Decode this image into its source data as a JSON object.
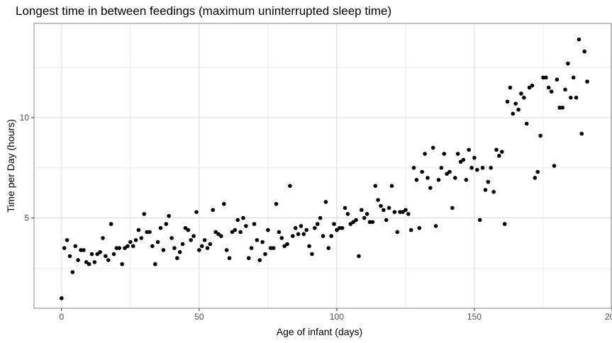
{
  "chart_data": {
    "type": "scatter",
    "title": "Longest time in between feedings (maximum uninterrupted sleep time)",
    "xlabel": "Age of infant (days)",
    "ylabel": "Time per Day (hours)",
    "xlim": [
      -10,
      200
    ],
    "ylim": [
      0.5,
      14.7
    ],
    "x_major_ticks": [
      0,
      50,
      100,
      150,
      200
    ],
    "x_minor_ticks": [
      25,
      75,
      125,
      175
    ],
    "y_major_ticks": [
      5,
      10
    ],
    "y_minor_ticks": [
      2.5,
      7.5,
      12.5
    ],
    "x_tick_labels": [
      "0",
      "50",
      "100",
      "150",
      "200"
    ],
    "y_tick_labels": [
      "5",
      "10"
    ],
    "grid": true,
    "legend": "none",
    "point_color": "#000000",
    "grid_color": "#dcdcdc",
    "x": [
      0,
      1,
      2,
      3,
      4,
      5,
      6,
      7,
      8,
      9,
      10,
      11,
      12,
      13,
      14,
      15,
      16,
      17,
      18,
      19,
      20,
      21,
      22,
      23,
      24,
      25,
      26,
      27,
      28,
      29,
      30,
      31,
      32,
      33,
      34,
      35,
      36,
      37,
      38,
      39,
      40,
      41,
      42,
      43,
      44,
      45,
      46,
      47,
      48,
      49,
      50,
      51,
      52,
      53,
      54,
      55,
      56,
      57,
      58,
      59,
      60,
      61,
      62,
      63,
      64,
      65,
      66,
      67,
      68,
      69,
      70,
      71,
      72,
      73,
      74,
      75,
      76,
      77,
      78,
      79,
      80,
      81,
      82,
      83,
      84,
      85,
      86,
      87,
      88,
      89,
      90,
      91,
      92,
      93,
      94,
      95,
      96,
      97,
      98,
      99,
      100,
      101,
      102,
      103,
      104,
      105,
      106,
      107,
      108,
      109,
      110,
      111,
      112,
      113,
      114,
      115,
      116,
      117,
      118,
      119,
      120,
      121,
      122,
      123,
      124,
      125,
      126,
      127,
      128,
      129,
      130,
      131,
      132,
      133,
      134,
      135,
      136,
      137,
      138,
      139,
      140,
      141,
      142,
      143,
      144,
      145,
      146,
      147,
      148,
      149,
      150,
      151,
      152,
      153,
      154,
      155,
      156,
      157,
      158,
      159,
      160,
      161,
      162,
      163,
      164,
      165,
      166,
      167,
      168,
      169,
      170,
      171,
      172,
      173,
      174,
      175,
      176,
      177,
      178,
      179,
      180,
      181,
      182,
      183,
      184,
      185,
      186,
      187,
      188,
      189,
      190,
      191
    ],
    "y": [
      1.0,
      3.5,
      3.9,
      3.1,
      2.3,
      3.6,
      2.9,
      3.4,
      3.4,
      2.8,
      2.7,
      3.2,
      2.8,
      3.2,
      3.3,
      4.0,
      3.1,
      2.9,
      4.7,
      3.2,
      3.5,
      3.5,
      2.7,
      3.5,
      3.6,
      3.8,
      3.6,
      3.9,
      4.4,
      4.0,
      5.2,
      4.3,
      4.3,
      3.6,
      2.7,
      3.8,
      4.5,
      3.4,
      4.7,
      5.1,
      4.0,
      3.5,
      3.0,
      3.3,
      3.7,
      4.5,
      4.4,
      3.9,
      4.1,
      5.3,
      3.4,
      3.6,
      3.9,
      3.5,
      3.7,
      5.4,
      4.3,
      4.2,
      4.1,
      5.7,
      3.4,
      3.0,
      4.3,
      4.4,
      4.9,
      4.3,
      5.0,
      4.6,
      3.0,
      3.5,
      4.7,
      3.9,
      2.9,
      3.8,
      3.2,
      4.4,
      3.5,
      3.5,
      5.7,
      4.3,
      4.0,
      3.6,
      3.7,
      6.6,
      4.1,
      4.5,
      4.2,
      4.6,
      4.2,
      4.4,
      3.6,
      3.2,
      4.5,
      4.7,
      5.0,
      4.1,
      5.8,
      3.5,
      4.1,
      4.7,
      4.4,
      4.5,
      4.5,
      5.5,
      5.2,
      4.7,
      4.8,
      4.9,
      3.1,
      5.4,
      5.0,
      5.2,
      4.8,
      4.8,
      6.6,
      5.9,
      5.6,
      5.4,
      4.9,
      5.5,
      6.6,
      5.3,
      4.3,
      5.3,
      5.3,
      5.4,
      5.2,
      4.4,
      7.5,
      6.9,
      4.5,
      7.3,
      8.2,
      7.0,
      6.5,
      8.5,
      4.6,
      6.9,
      7.5,
      8.2,
      7.2,
      7.3,
      5.5,
      7.0,
      8.2,
      7.8,
      7.9,
      6.9,
      8.4,
      7.5,
      8.0,
      7.4,
      4.9,
      7.5,
      6.4,
      6.8,
      7.5,
      6.3,
      8.4,
      8.1,
      8.3,
      4.7,
      10.8,
      11.5,
      10.2,
      10.7,
      10.4,
      11.2,
      11.0,
      9.7,
      11.5,
      11.6,
      7.0,
      7.3,
      9.1,
      12.0,
      12.0,
      11.5,
      11.3,
      7.6,
      11.9,
      10.5,
      10.5,
      11.4,
      12.7,
      11.0,
      12.0,
      11.0,
      13.9,
      9.2,
      13.3,
      11.8
    ]
  }
}
